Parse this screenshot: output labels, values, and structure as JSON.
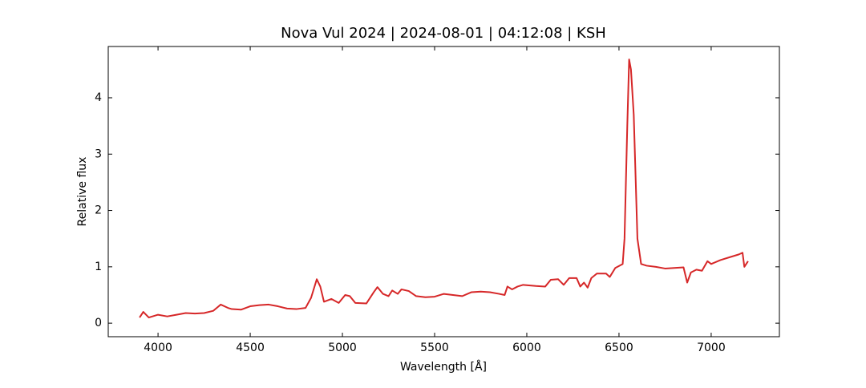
{
  "chart_data": {
    "type": "line",
    "title": "Nova Vul 2024 | 2024-08-01 | 04:12:08 | KSH",
    "xlabel": "Wavelength [Å]",
    "ylabel": "Relative flux",
    "x": [
      3900,
      3920,
      3950,
      4000,
      4050,
      4100,
      4150,
      4200,
      4250,
      4300,
      4340,
      4380,
      4400,
      4450,
      4500,
      4550,
      4600,
      4650,
      4700,
      4750,
      4800,
      4830,
      4861,
      4880,
      4900,
      4940,
      4980,
      5015,
      5040,
      5070,
      5130,
      5170,
      5190,
      5220,
      5250,
      5270,
      5300,
      5320,
      5360,
      5400,
      5450,
      5500,
      5550,
      5600,
      5650,
      5700,
      5750,
      5800,
      5850,
      5880,
      5895,
      5920,
      5950,
      5980,
      6050,
      6100,
      6130,
      6170,
      6200,
      6230,
      6270,
      6290,
      6310,
      6330,
      6350,
      6380,
      6430,
      6450,
      6480,
      6520,
      6530,
      6545,
      6555,
      6565,
      6580,
      6600,
      6620,
      6650,
      6700,
      6750,
      6800,
      6850,
      6870,
      6890,
      6920,
      6950,
      6980,
      7000,
      7050,
      7100,
      7150,
      7170,
      7180,
      7200
    ],
    "series": [
      {
        "name": "Relative flux",
        "color": "#d62728",
        "values": [
          0.1,
          0.2,
          0.1,
          0.15,
          0.12,
          0.15,
          0.18,
          0.17,
          0.18,
          0.22,
          0.33,
          0.27,
          0.25,
          0.24,
          0.3,
          0.32,
          0.33,
          0.3,
          0.26,
          0.25,
          0.27,
          0.45,
          0.78,
          0.65,
          0.38,
          0.43,
          0.36,
          0.5,
          0.48,
          0.36,
          0.35,
          0.55,
          0.64,
          0.52,
          0.48,
          0.58,
          0.52,
          0.6,
          0.57,
          0.48,
          0.46,
          0.47,
          0.52,
          0.5,
          0.48,
          0.55,
          0.56,
          0.55,
          0.52,
          0.5,
          0.65,
          0.6,
          0.65,
          0.68,
          0.66,
          0.65,
          0.77,
          0.78,
          0.68,
          0.8,
          0.8,
          0.65,
          0.72,
          0.63,
          0.8,
          0.88,
          0.88,
          0.82,
          0.98,
          1.05,
          1.5,
          3.5,
          4.68,
          4.5,
          3.7,
          1.5,
          1.05,
          1.02,
          1.0,
          0.97,
          0.98,
          0.99,
          0.72,
          0.9,
          0.95,
          0.93,
          1.1,
          1.05,
          1.12,
          1.17,
          1.22,
          1.25,
          1.0,
          1.1
        ]
      }
    ],
    "xlim": [
      3730,
      7370
    ],
    "xticks": [
      4000,
      4500,
      5000,
      5500,
      6000,
      6500,
      7000
    ],
    "ylim": [
      -0.24,
      4.91
    ],
    "yticks": [
      0,
      1,
      2,
      3,
      4
    ]
  }
}
